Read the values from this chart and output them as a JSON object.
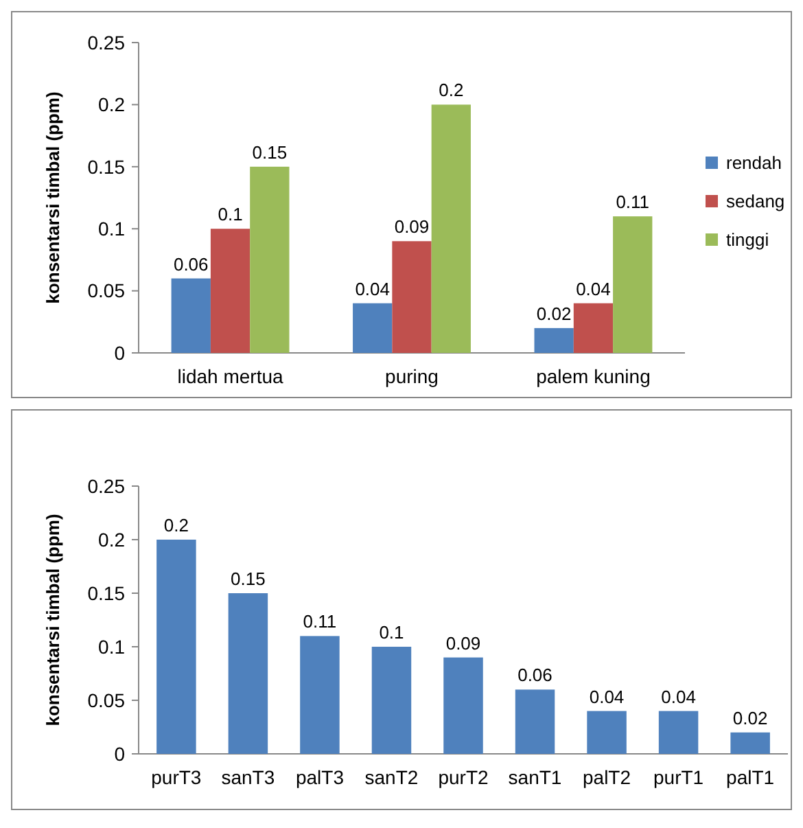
{
  "chart_data": [
    {
      "type": "bar",
      "ylabel": "konsentarsi timbal (ppm)",
      "categories": [
        "lidah mertua",
        "puring",
        "palem kuning"
      ],
      "series": [
        {
          "name": "rendah",
          "color": "#4f81bd",
          "values": [
            0.06,
            0.04,
            0.02
          ]
        },
        {
          "name": "sedang",
          "color": "#c0504d",
          "values": [
            0.1,
            0.09,
            0.04
          ]
        },
        {
          "name": "tinggi",
          "color": "#9bbb59",
          "values": [
            0.15,
            0.2,
            0.11
          ]
        }
      ],
      "ylim": [
        0,
        0.25
      ],
      "yticks": [
        0,
        0.05,
        0.1,
        0.15,
        0.2,
        0.25
      ],
      "data_labels": true,
      "legend": "right"
    },
    {
      "type": "bar",
      "ylabel": "konsentarsi timbal (ppm)",
      "categories": [
        "purT3",
        "sanT3",
        "palT3",
        "sanT2",
        "purT2",
        "sanT1",
        "palT2",
        "purT1",
        "palT1"
      ],
      "values": [
        0.2,
        0.15,
        0.11,
        0.1,
        0.09,
        0.06,
        0.04,
        0.04,
        0.02
      ],
      "color": "#4f81bd",
      "ylim": [
        0,
        0.25
      ],
      "yticks": [
        0,
        0.05,
        0.1,
        0.15,
        0.2,
        0.25
      ],
      "data_labels": true
    }
  ]
}
